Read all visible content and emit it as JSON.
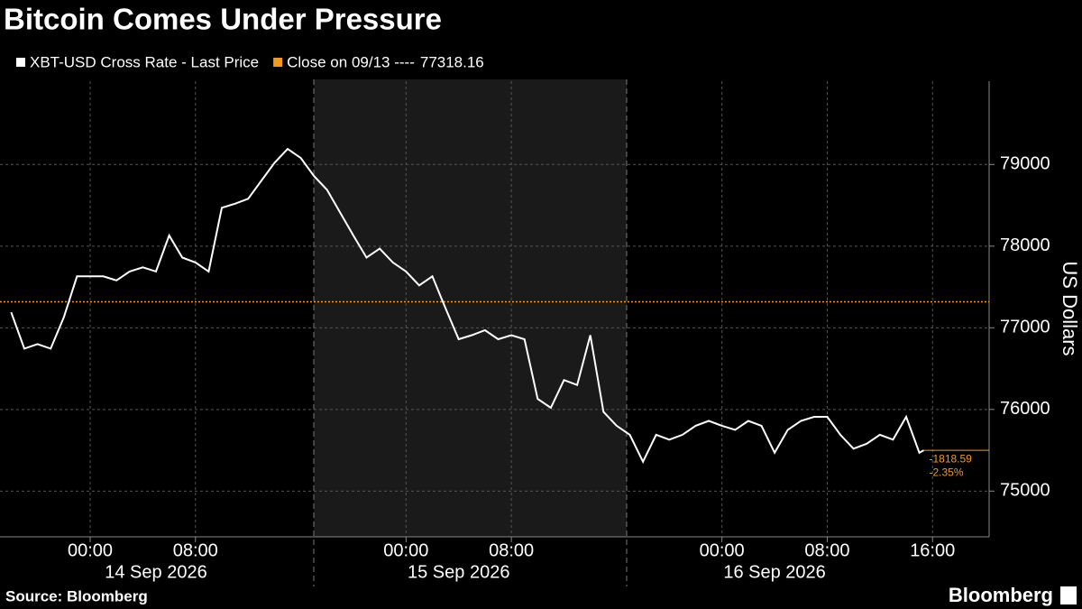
{
  "chart_data": {
    "type": "line",
    "title": "Bitcoin Comes Under Pressure",
    "y_label": "US Dollars",
    "source": "Source: Bloomberg",
    "brand": "Bloomberg",
    "series": [
      {
        "name": "XBT-USD Cross Rate - Last Price",
        "color": "#ffffff",
        "x": [
          "2026-09-13 18:00",
          "2026-09-13 19:00",
          "2026-09-13 20:00",
          "2026-09-13 21:00",
          "2026-09-13 22:00",
          "2026-09-13 23:00",
          "2026-09-14 00:00",
          "2026-09-14 01:00",
          "2026-09-14 02:00",
          "2026-09-14 03:00",
          "2026-09-14 04:00",
          "2026-09-14 05:00",
          "2026-09-14 06:00",
          "2026-09-14 07:00",
          "2026-09-14 08:00",
          "2026-09-14 09:00",
          "2026-09-14 10:00",
          "2026-09-14 11:00",
          "2026-09-14 12:00",
          "2026-09-14 13:00",
          "2026-09-14 14:00",
          "2026-09-14 15:00",
          "2026-09-14 16:00",
          "2026-09-14 17:00",
          "2026-09-14 18:00",
          "2026-09-14 19:00",
          "2026-09-14 20:00",
          "2026-09-14 21:00",
          "2026-09-14 22:00",
          "2026-09-14 23:00",
          "2026-09-15 00:00",
          "2026-09-15 01:00",
          "2026-09-15 02:00",
          "2026-09-15 03:00",
          "2026-09-15 04:00",
          "2026-09-15 05:00",
          "2026-09-15 06:00",
          "2026-09-15 07:00",
          "2026-09-15 08:00",
          "2026-09-15 09:00",
          "2026-09-15 10:00",
          "2026-09-15 11:00",
          "2026-09-15 12:00",
          "2026-09-15 13:00",
          "2026-09-15 14:00",
          "2026-09-15 15:00",
          "2026-09-15 16:00",
          "2026-09-15 17:00",
          "2026-09-15 18:00",
          "2026-09-15 19:00",
          "2026-09-15 20:00",
          "2026-09-15 21:00",
          "2026-09-15 22:00",
          "2026-09-15 23:00",
          "2026-09-16 00:00",
          "2026-09-16 01:00",
          "2026-09-16 02:00",
          "2026-09-16 03:00",
          "2026-09-16 04:00",
          "2026-09-16 05:00",
          "2026-09-16 06:00",
          "2026-09-16 07:00",
          "2026-09-16 08:00",
          "2026-09-16 09:00",
          "2026-09-16 10:00",
          "2026-09-16 11:00",
          "2026-09-16 12:00",
          "2026-09-16 13:00",
          "2026-09-16 14:00",
          "2026-09-16 15:00",
          "2026-09-16 15:20"
        ],
        "values": [
          77190,
          76745,
          76800,
          76745,
          77130,
          77630,
          77630,
          77630,
          77580,
          77690,
          77740,
          77690,
          78130,
          77860,
          77800,
          77690,
          78470,
          78520,
          78580,
          78800,
          79020,
          79190,
          79080,
          78860,
          78690,
          78410,
          78130,
          77860,
          77970,
          77800,
          77690,
          77520,
          77630,
          77240,
          76860,
          76910,
          76970,
          76860,
          76910,
          76860,
          76130,
          76020,
          76360,
          76300,
          76910,
          75970,
          75800,
          75690,
          75360,
          75690,
          75630,
          75690,
          75800,
          75860,
          75800,
          75750,
          75860,
          75800,
          75470,
          75750,
          75860,
          75910,
          75910,
          75690,
          75520,
          75580,
          75690,
          75630,
          75910,
          75470,
          75499.57
        ]
      }
    ],
    "reference": {
      "name": "Close on 09/13 ----",
      "value": 77318.16,
      "color": "#f39a1e"
    },
    "last_change": -1818.59,
    "last_change_pct": {
      "value": -2.35,
      "label": "-2.35%"
    },
    "xlim": [
      "2026-09-13 17:09",
      "2026-09-16 20:18"
    ],
    "xticks": [
      {
        "value": "2026-09-14 00:00",
        "label": "00:00"
      },
      {
        "value": "2026-09-14 08:00",
        "label": "08:00"
      },
      {
        "value": "2026-09-15 00:00",
        "label": "00:00"
      },
      {
        "value": "2026-09-15 08:00",
        "label": "08:00"
      },
      {
        "value": "2026-09-16 00:00",
        "label": "00:00"
      },
      {
        "value": "2026-09-16 08:00",
        "label": "08:00"
      },
      {
        "value": "2026-09-16 16:00",
        "label": "16:00"
      }
    ],
    "date_labels": [
      {
        "value": "2026-09-14 05:00",
        "label": "14 Sep 2026"
      },
      {
        "value": "2026-09-15 04:00",
        "label": "15 Sep 2026"
      },
      {
        "value": "2026-09-16 04:00",
        "label": "16 Sep 2026"
      }
    ],
    "ylim": [
      74440,
      80020
    ],
    "yticks": [
      75000,
      76000,
      77000,
      78000,
      79000
    ],
    "grid": true
  }
}
